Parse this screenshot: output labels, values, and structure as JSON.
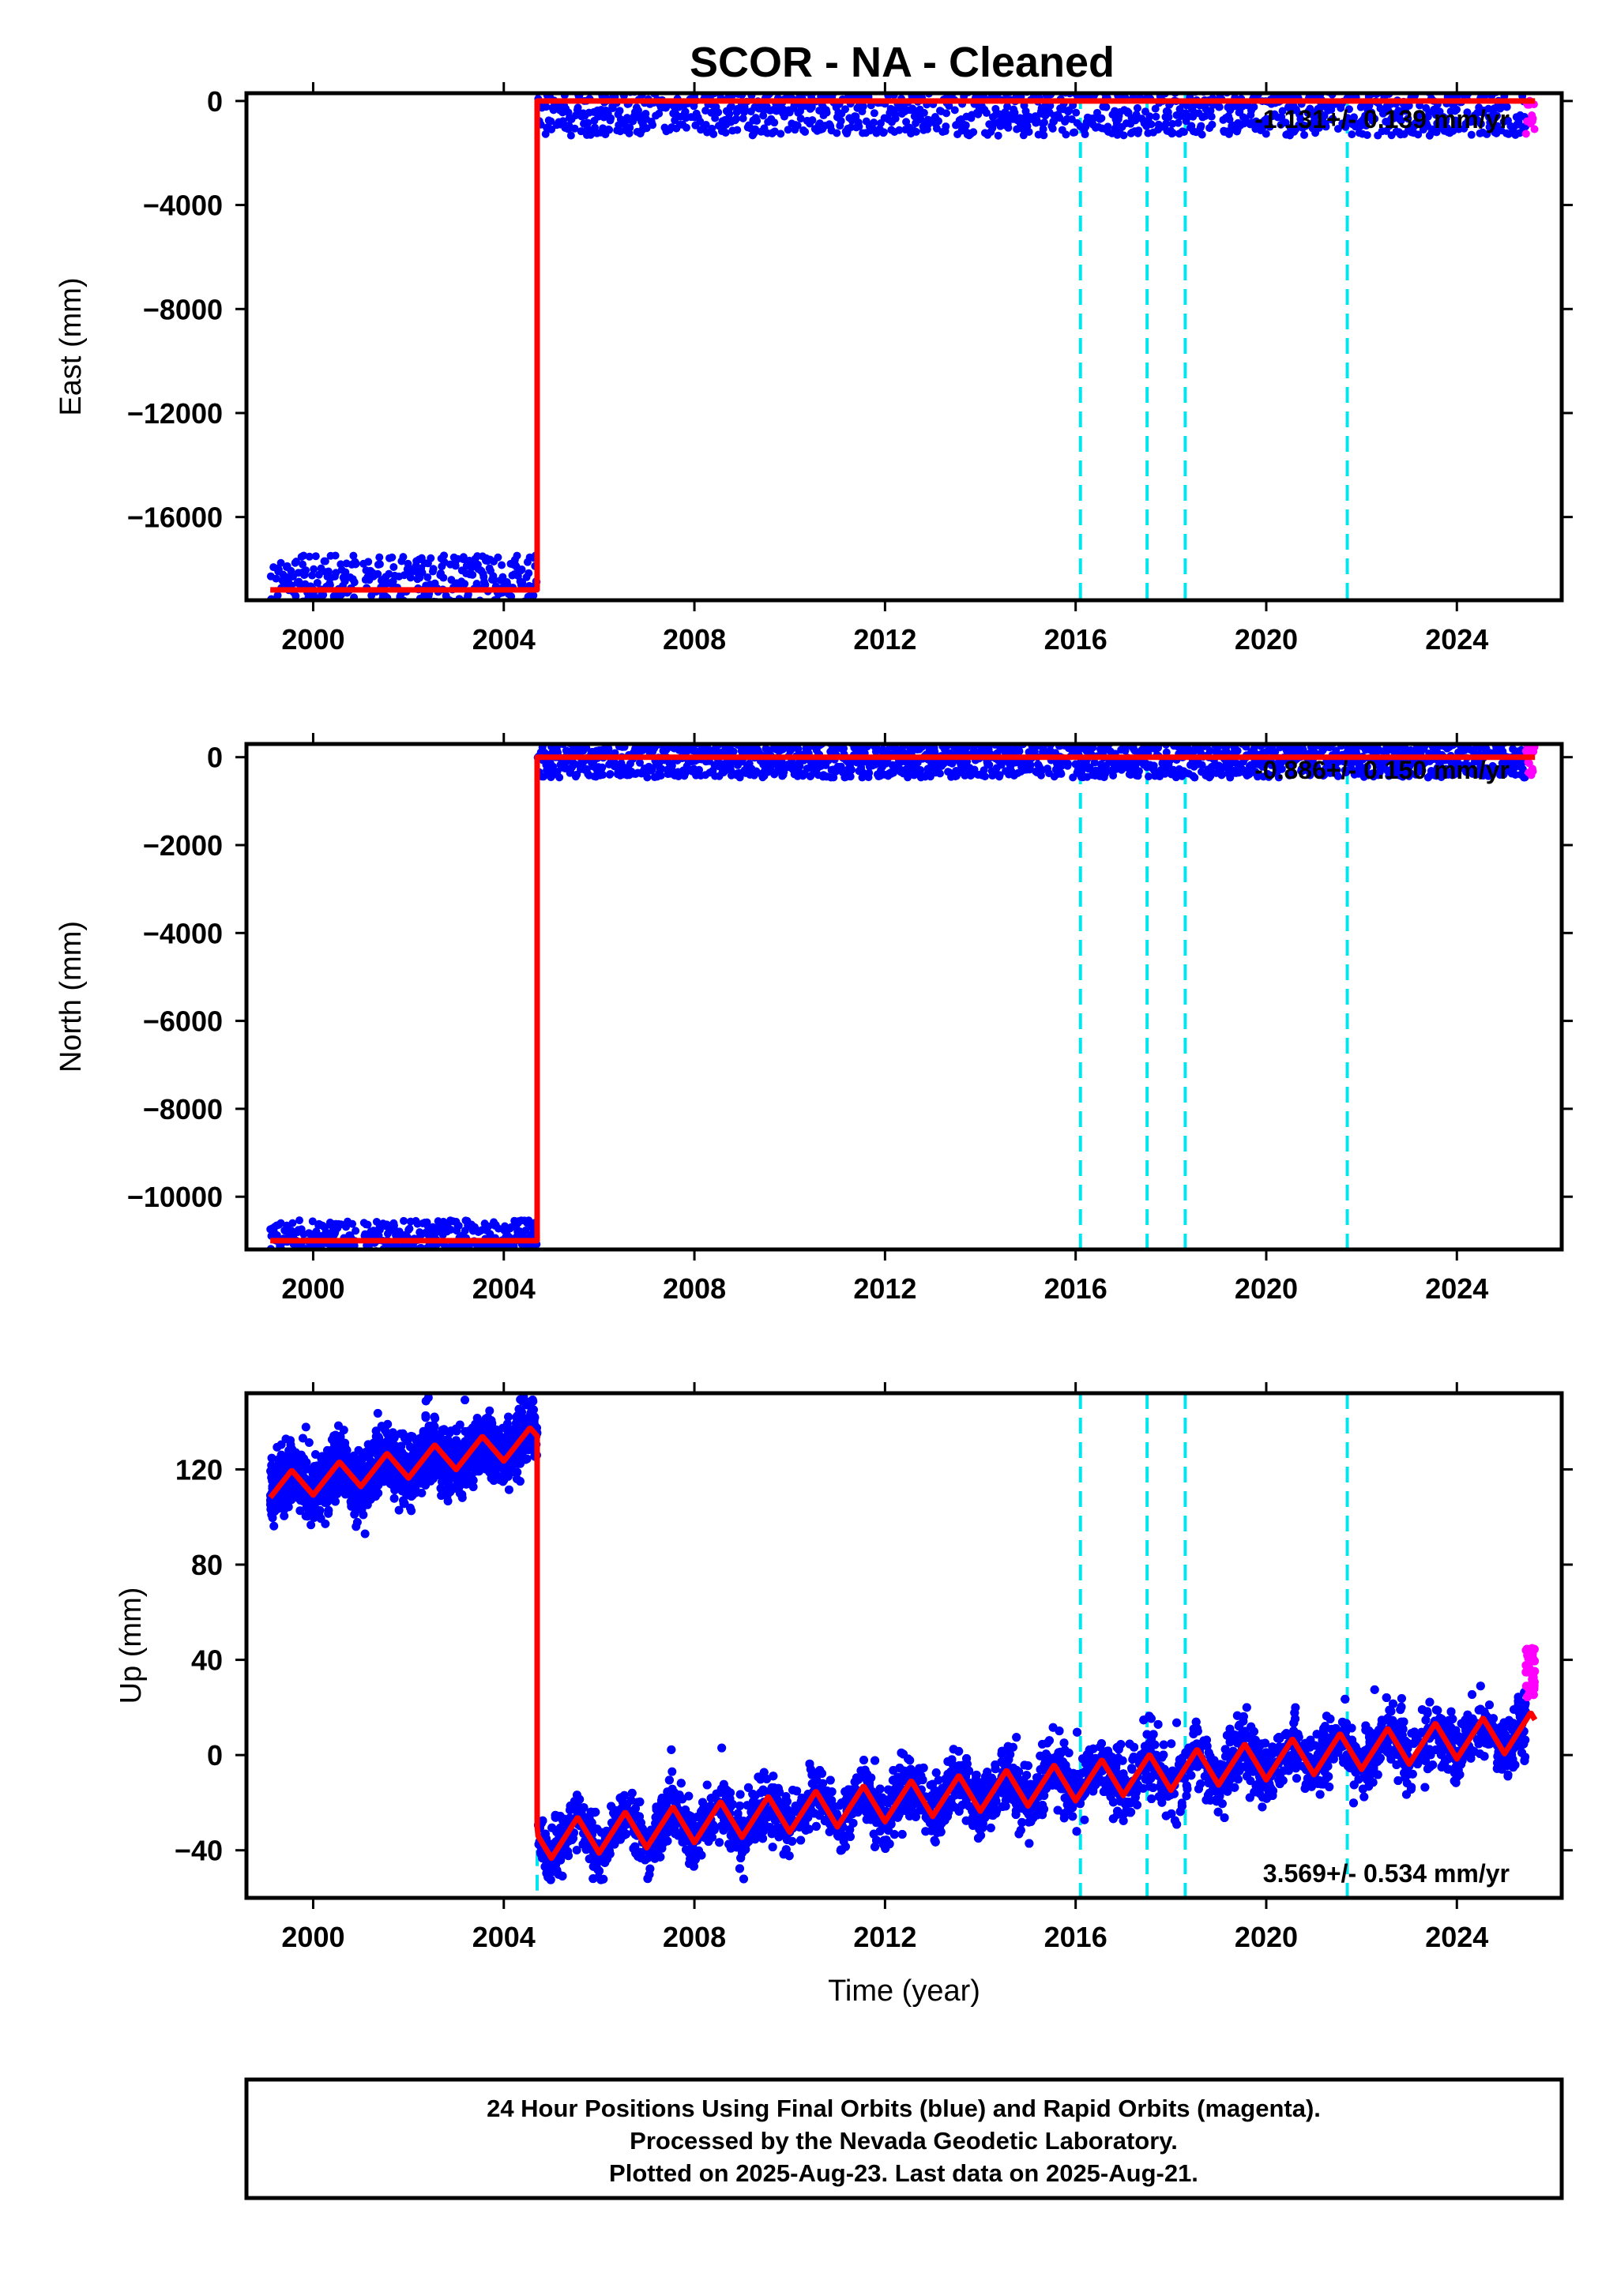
{
  "title": "SCOR  - NA - Cleaned",
  "footer": {
    "line1": "24 Hour Positions Using Final Orbits (blue) and Rapid Orbits (magenta).",
    "line2": "Processed by the Nevada Geodetic Laboratory.",
    "line3": "Plotted on 2025-Aug-23. Last data on 2025-Aug-21."
  },
  "colors": {
    "final_orbit_points": "#0000ff",
    "rapid_orbit_points": "#ff00ff",
    "model_line": "#ff0000",
    "event_lines": "#00e5ee"
  },
  "chart_data": [
    {
      "type": "scatter",
      "panel": "east",
      "ylabel": "East (mm)",
      "xlabel": "",
      "xlim": [
        1998.6,
        2026.2
      ],
      "ylim": [
        -19200,
        300
      ],
      "x_ticks": [
        2000,
        2004,
        2008,
        2012,
        2016,
        2020,
        2024
      ],
      "y_ticks": [
        0,
        -4000,
        -8000,
        -12000,
        -16000
      ],
      "y_tick_labels": [
        "0",
        "−4000",
        "−8000",
        "−12000",
        "−16000"
      ],
      "rate_label": "-1.131+/- 0.139 mm/yr",
      "event_lines_x": [
        2016.1,
        2017.5,
        2018.3,
        2021.7
      ],
      "step_x": 2004.7,
      "segments": [
        {
          "x_start": 1999.1,
          "x_end": 2004.7,
          "y": -18800
        },
        {
          "x_start": 2004.7,
          "x_end": 2025.64,
          "y": 0
        }
      ],
      "rapid_x_range": [
        2025.45,
        2025.64
      ]
    },
    {
      "type": "scatter",
      "panel": "north",
      "ylabel": "North (mm)",
      "xlabel": "",
      "xlim": [
        1998.6,
        2026.2
      ],
      "ylim": [
        -11200,
        300
      ],
      "x_ticks": [
        2000,
        2004,
        2008,
        2012,
        2016,
        2020,
        2024
      ],
      "y_ticks": [
        0,
        -2000,
        -4000,
        -6000,
        -8000,
        -10000
      ],
      "y_tick_labels": [
        "0",
        "−2000",
        "−4000",
        "−6000",
        "−8000",
        "−10000"
      ],
      "rate_label": "-0.886+/- 0.150 mm/yr",
      "event_lines_x": [
        2016.1,
        2017.5,
        2018.3,
        2021.7
      ],
      "step_x": 2004.7,
      "segments": [
        {
          "x_start": 1999.1,
          "x_end": 2004.7,
          "y": -11000
        },
        {
          "x_start": 2004.7,
          "x_end": 2025.64,
          "y": 0
        }
      ],
      "rapid_x_range": [
        2025.45,
        2025.64
      ]
    },
    {
      "type": "scatter",
      "panel": "up",
      "ylabel": "Up (mm)",
      "xlabel": "Time (year)",
      "xlim": [
        1998.6,
        2026.2
      ],
      "ylim": [
        -60,
        152
      ],
      "x_ticks": [
        2000,
        2004,
        2008,
        2012,
        2016,
        2020,
        2024
      ],
      "y_ticks": [
        120,
        80,
        40,
        0,
        -40
      ],
      "y_tick_labels": [
        "120",
        "80",
        "40",
        "0",
        "−40"
      ],
      "rate_label": "3.569+/- 0.534 mm/yr",
      "event_lines_x": [
        2004.7,
        2016.1,
        2017.5,
        2018.3,
        2021.7
      ],
      "step_x": 2004.7,
      "model": {
        "pre_step": {
          "x_start": 1999.1,
          "x_end": 2004.7,
          "y_start": 112,
          "y_end": 132,
          "annual_amplitude_mm": 6
        },
        "post_step": {
          "x_start": 2004.7,
          "x_end": 2025.64,
          "y_start": -36,
          "y_end": 10,
          "annual_amplitude_mm": 8
        }
      },
      "scatter_sigma_mm": 6.5,
      "rapid_x_range": [
        2025.45,
        2025.64
      ]
    }
  ]
}
